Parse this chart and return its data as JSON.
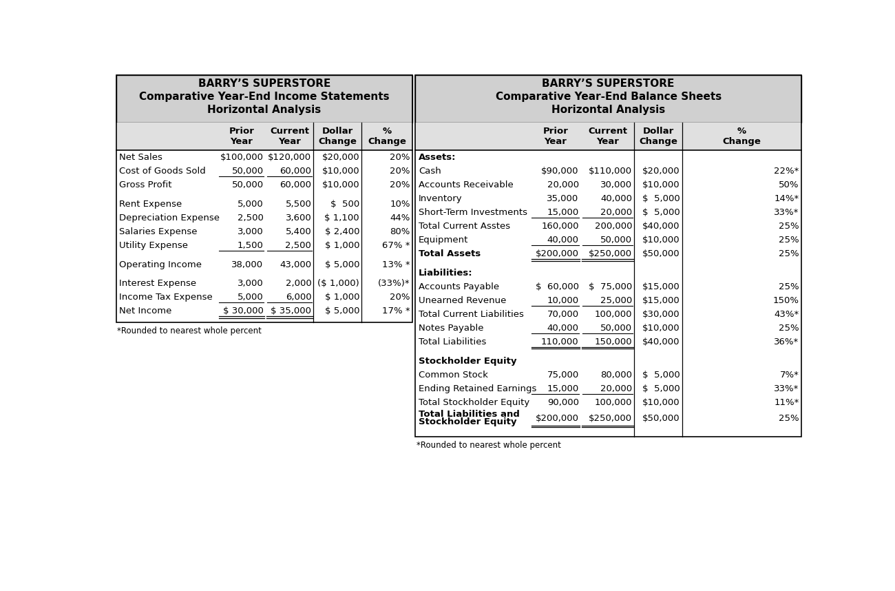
{
  "left_title": [
    "BARRY’S SUPERSTORE",
    "Comparative Year-End Income Statements",
    "Horizontal Analysis"
  ],
  "right_title": [
    "BARRY’S SUPERSTORE",
    "Comparative Year-End Balance Sheets",
    "Horizontal Analysis"
  ],
  "col_headers": [
    "Prior\nYear",
    "Current\nYear",
    "Dollar\nChange",
    "%\nChange"
  ],
  "left_rows": [
    {
      "label": "Net Sales",
      "prior": "$100,000",
      "current": "$120,000",
      "dollar": "$20,000",
      "pct": "20%",
      "bold": false,
      "ul_p": false,
      "ul_c": false,
      "dbl": false,
      "gap_after": false
    },
    {
      "label": "Cost of Goods Sold",
      "prior": "50,000",
      "current": "60,000",
      "dollar": "$10,000",
      "pct": "20%",
      "bold": false,
      "ul_p": true,
      "ul_c": true,
      "dbl": false,
      "gap_after": false
    },
    {
      "label": "Gross Profit",
      "prior": "50,000",
      "current": "60,000",
      "dollar": "$10,000",
      "pct": "20%",
      "bold": false,
      "ul_p": false,
      "ul_c": false,
      "dbl": false,
      "gap_after": true
    },
    {
      "label": "Rent Expense",
      "prior": "5,000",
      "current": "5,500",
      "dollar": "$  500",
      "pct": "10%",
      "bold": false,
      "ul_p": false,
      "ul_c": false,
      "dbl": false,
      "gap_after": false
    },
    {
      "label": "Depreciation Expense",
      "prior": "2,500",
      "current": "3,600",
      "dollar": "$ 1,100",
      "pct": "44%",
      "bold": false,
      "ul_p": false,
      "ul_c": false,
      "dbl": false,
      "gap_after": false
    },
    {
      "label": "Salaries Expense",
      "prior": "3,000",
      "current": "5,400",
      "dollar": "$ 2,400",
      "pct": "80%",
      "bold": false,
      "ul_p": false,
      "ul_c": false,
      "dbl": false,
      "gap_after": false
    },
    {
      "label": "Utility Expense",
      "prior": "1,500",
      "current": "2,500",
      "dollar": "$ 1,000",
      "pct": "67% *",
      "bold": false,
      "ul_p": true,
      "ul_c": true,
      "dbl": false,
      "gap_after": true
    },
    {
      "label": "Operating Income",
      "prior": "38,000",
      "current": "43,000",
      "dollar": "$ 5,000",
      "pct": "13% *",
      "bold": false,
      "ul_p": false,
      "ul_c": false,
      "dbl": false,
      "gap_after": true
    },
    {
      "label": "Interest Expense",
      "prior": "3,000",
      "current": "2,000",
      "dollar": "($ 1,000)",
      "pct": "(33%)*",
      "bold": false,
      "ul_p": false,
      "ul_c": false,
      "dbl": false,
      "gap_after": false
    },
    {
      "label": "Income Tax Expense",
      "prior": "5,000",
      "current": "6,000",
      "dollar": "$ 1,000",
      "pct": "20%",
      "bold": false,
      "ul_p": true,
      "ul_c": true,
      "dbl": false,
      "gap_after": false
    },
    {
      "label": "Net Income",
      "prior": "$ 30,000",
      "current": "$ 35,000",
      "dollar": "$ 5,000",
      "pct": "17% *",
      "bold": false,
      "ul_p": false,
      "ul_c": false,
      "dbl": true,
      "gap_after": false
    }
  ],
  "right_sections": [
    {
      "section_label": "Assets:",
      "rows": [
        {
          "label": "Cash",
          "prior": "$90,000",
          "current": "$110,000",
          "dollar": "$20,000",
          "pct": "22%*",
          "ul_p": false,
          "ul_c": false,
          "dbl": false,
          "bold": false
        },
        {
          "label": "Accounts Receivable",
          "prior": "20,000",
          "current": "30,000",
          "dollar": "$10,000",
          "pct": "50%",
          "ul_p": false,
          "ul_c": false,
          "dbl": false,
          "bold": false
        },
        {
          "label": "Inventory",
          "prior": "35,000",
          "current": "40,000",
          "dollar": "$  5,000",
          "pct": "14%*",
          "ul_p": false,
          "ul_c": false,
          "dbl": false,
          "bold": false
        },
        {
          "label": "Short-Term Investments",
          "prior": "15,000",
          "current": "20,000",
          "dollar": "$  5,000",
          "pct": "33%*",
          "ul_p": true,
          "ul_c": true,
          "dbl": false,
          "bold": false
        },
        {
          "label": "Total Current Asstes",
          "prior": "160,000",
          "current": "200,000",
          "dollar": "$40,000",
          "pct": "25%",
          "ul_p": false,
          "ul_c": false,
          "dbl": false,
          "bold": false
        },
        {
          "label": "Equipment",
          "prior": "40,000",
          "current": "50,000",
          "dollar": "$10,000",
          "pct": "25%",
          "ul_p": true,
          "ul_c": true,
          "dbl": false,
          "bold": false
        },
        {
          "label": "Total Assets",
          "prior": "$200,000",
          "current": "$250,000",
          "dollar": "$50,000",
          "pct": "25%",
          "ul_p": false,
          "ul_c": false,
          "dbl": true,
          "bold": true
        }
      ]
    },
    {
      "section_label": "Liabilities:",
      "rows": [
        {
          "label": "Accounts Payable",
          "prior": "$  60,000",
          "current": "$  75,000",
          "dollar": "$15,000",
          "pct": "25%",
          "ul_p": false,
          "ul_c": false,
          "dbl": false,
          "bold": false
        },
        {
          "label": "Unearned Revenue",
          "prior": "10,000",
          "current": "25,000",
          "dollar": "$15,000",
          "pct": "150%",
          "ul_p": true,
          "ul_c": true,
          "dbl": false,
          "bold": false
        },
        {
          "label": "Total Current Liabilities",
          "prior": "70,000",
          "current": "100,000",
          "dollar": "$30,000",
          "pct": "43%*",
          "ul_p": false,
          "ul_c": false,
          "dbl": false,
          "bold": false
        },
        {
          "label": "Notes Payable",
          "prior": "40,000",
          "current": "50,000",
          "dollar": "$10,000",
          "pct": "25%",
          "ul_p": true,
          "ul_c": true,
          "dbl": false,
          "bold": false
        },
        {
          "label": "Total Liabilities",
          "prior": "110,000",
          "current": "150,000",
          "dollar": "$40,000",
          "pct": "36%*",
          "ul_p": false,
          "ul_c": false,
          "dbl": true,
          "bold": false
        }
      ]
    },
    {
      "section_label": "Stockholder Equity",
      "rows": [
        {
          "label": "Common Stock",
          "prior": "75,000",
          "current": "80,000",
          "dollar": "$  5,000",
          "pct": "7%*",
          "ul_p": false,
          "ul_c": false,
          "dbl": false,
          "bold": false
        },
        {
          "label": "Ending Retained Earnings",
          "prior": "15,000",
          "current": "20,000",
          "dollar": "$  5,000",
          "pct": "33%*",
          "ul_p": true,
          "ul_c": true,
          "dbl": false,
          "bold": false
        },
        {
          "label": "Total Stockholder Equity",
          "prior": "90,000",
          "current": "100,000",
          "dollar": "$10,000",
          "pct": "11%*",
          "ul_p": false,
          "ul_c": false,
          "dbl": false,
          "bold": false
        },
        {
          "label": "Total Liabilities and\nStockholder Equity",
          "prior": "$200,000",
          "current": "$250,000",
          "dollar": "$50,000",
          "pct": "25%",
          "ul_p": false,
          "ul_c": false,
          "dbl": true,
          "bold": true
        }
      ]
    }
  ],
  "footnote": "*Rounded to nearest whole percent",
  "bg_header": "#d0d0d0",
  "bg_col_header": "#e0e0e0",
  "bg_white": "#ffffff",
  "border_color": "#000000",
  "text_color": "#000000",
  "font_size": 9.5,
  "header_font_size": 11.0
}
